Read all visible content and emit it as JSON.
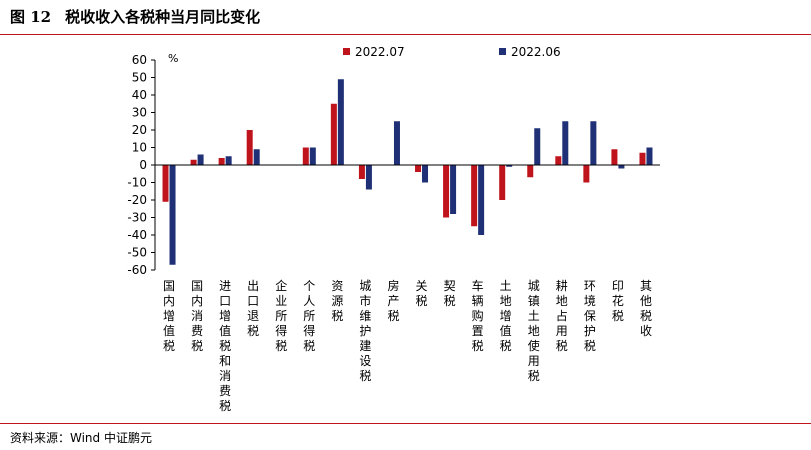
{
  "header": {
    "figure_label": "图 12",
    "title": "税收收入各税种当月同比变化"
  },
  "footer": {
    "source": "资料来源：Wind    中证鹏元"
  },
  "colors": {
    "rule": "#c0141c",
    "series_2022_07": "#c0141c",
    "series_2022_06": "#1f3077"
  },
  "chart_data": {
    "type": "bar",
    "unit_label": "%",
    "ylim": [
      -60,
      60
    ],
    "yticks": [
      60,
      50,
      40,
      30,
      20,
      10,
      0,
      -10,
      -20,
      -30,
      -40,
      -50,
      -60
    ],
    "grid": false,
    "legend_position": "top",
    "categories": [
      "国内增值税",
      "国内消费税",
      "进口增值税和消费税",
      "出口退税",
      "企业所得税",
      "个人所得税",
      "资源税",
      "城市维护建设税",
      "房产税",
      "关税",
      "契税",
      "车辆购置税",
      "土地增值税",
      "城镇土地使用税",
      "耕地占用税",
      "环境保护税",
      "印花税",
      "其他税收"
    ],
    "series": [
      {
        "name": "2022.07",
        "values": [
          -21,
          3,
          4,
          20,
          0,
          10,
          35,
          -8,
          0,
          -4,
          -30,
          -35,
          -20,
          -7,
          5,
          -10,
          9,
          7
        ]
      },
      {
        "name": "2022.06",
        "values": [
          -57,
          6,
          5,
          9,
          0,
          10,
          49,
          -14,
          25,
          -10,
          -28,
          -40,
          -1,
          21,
          25,
          25,
          -2,
          10
        ]
      }
    ]
  }
}
